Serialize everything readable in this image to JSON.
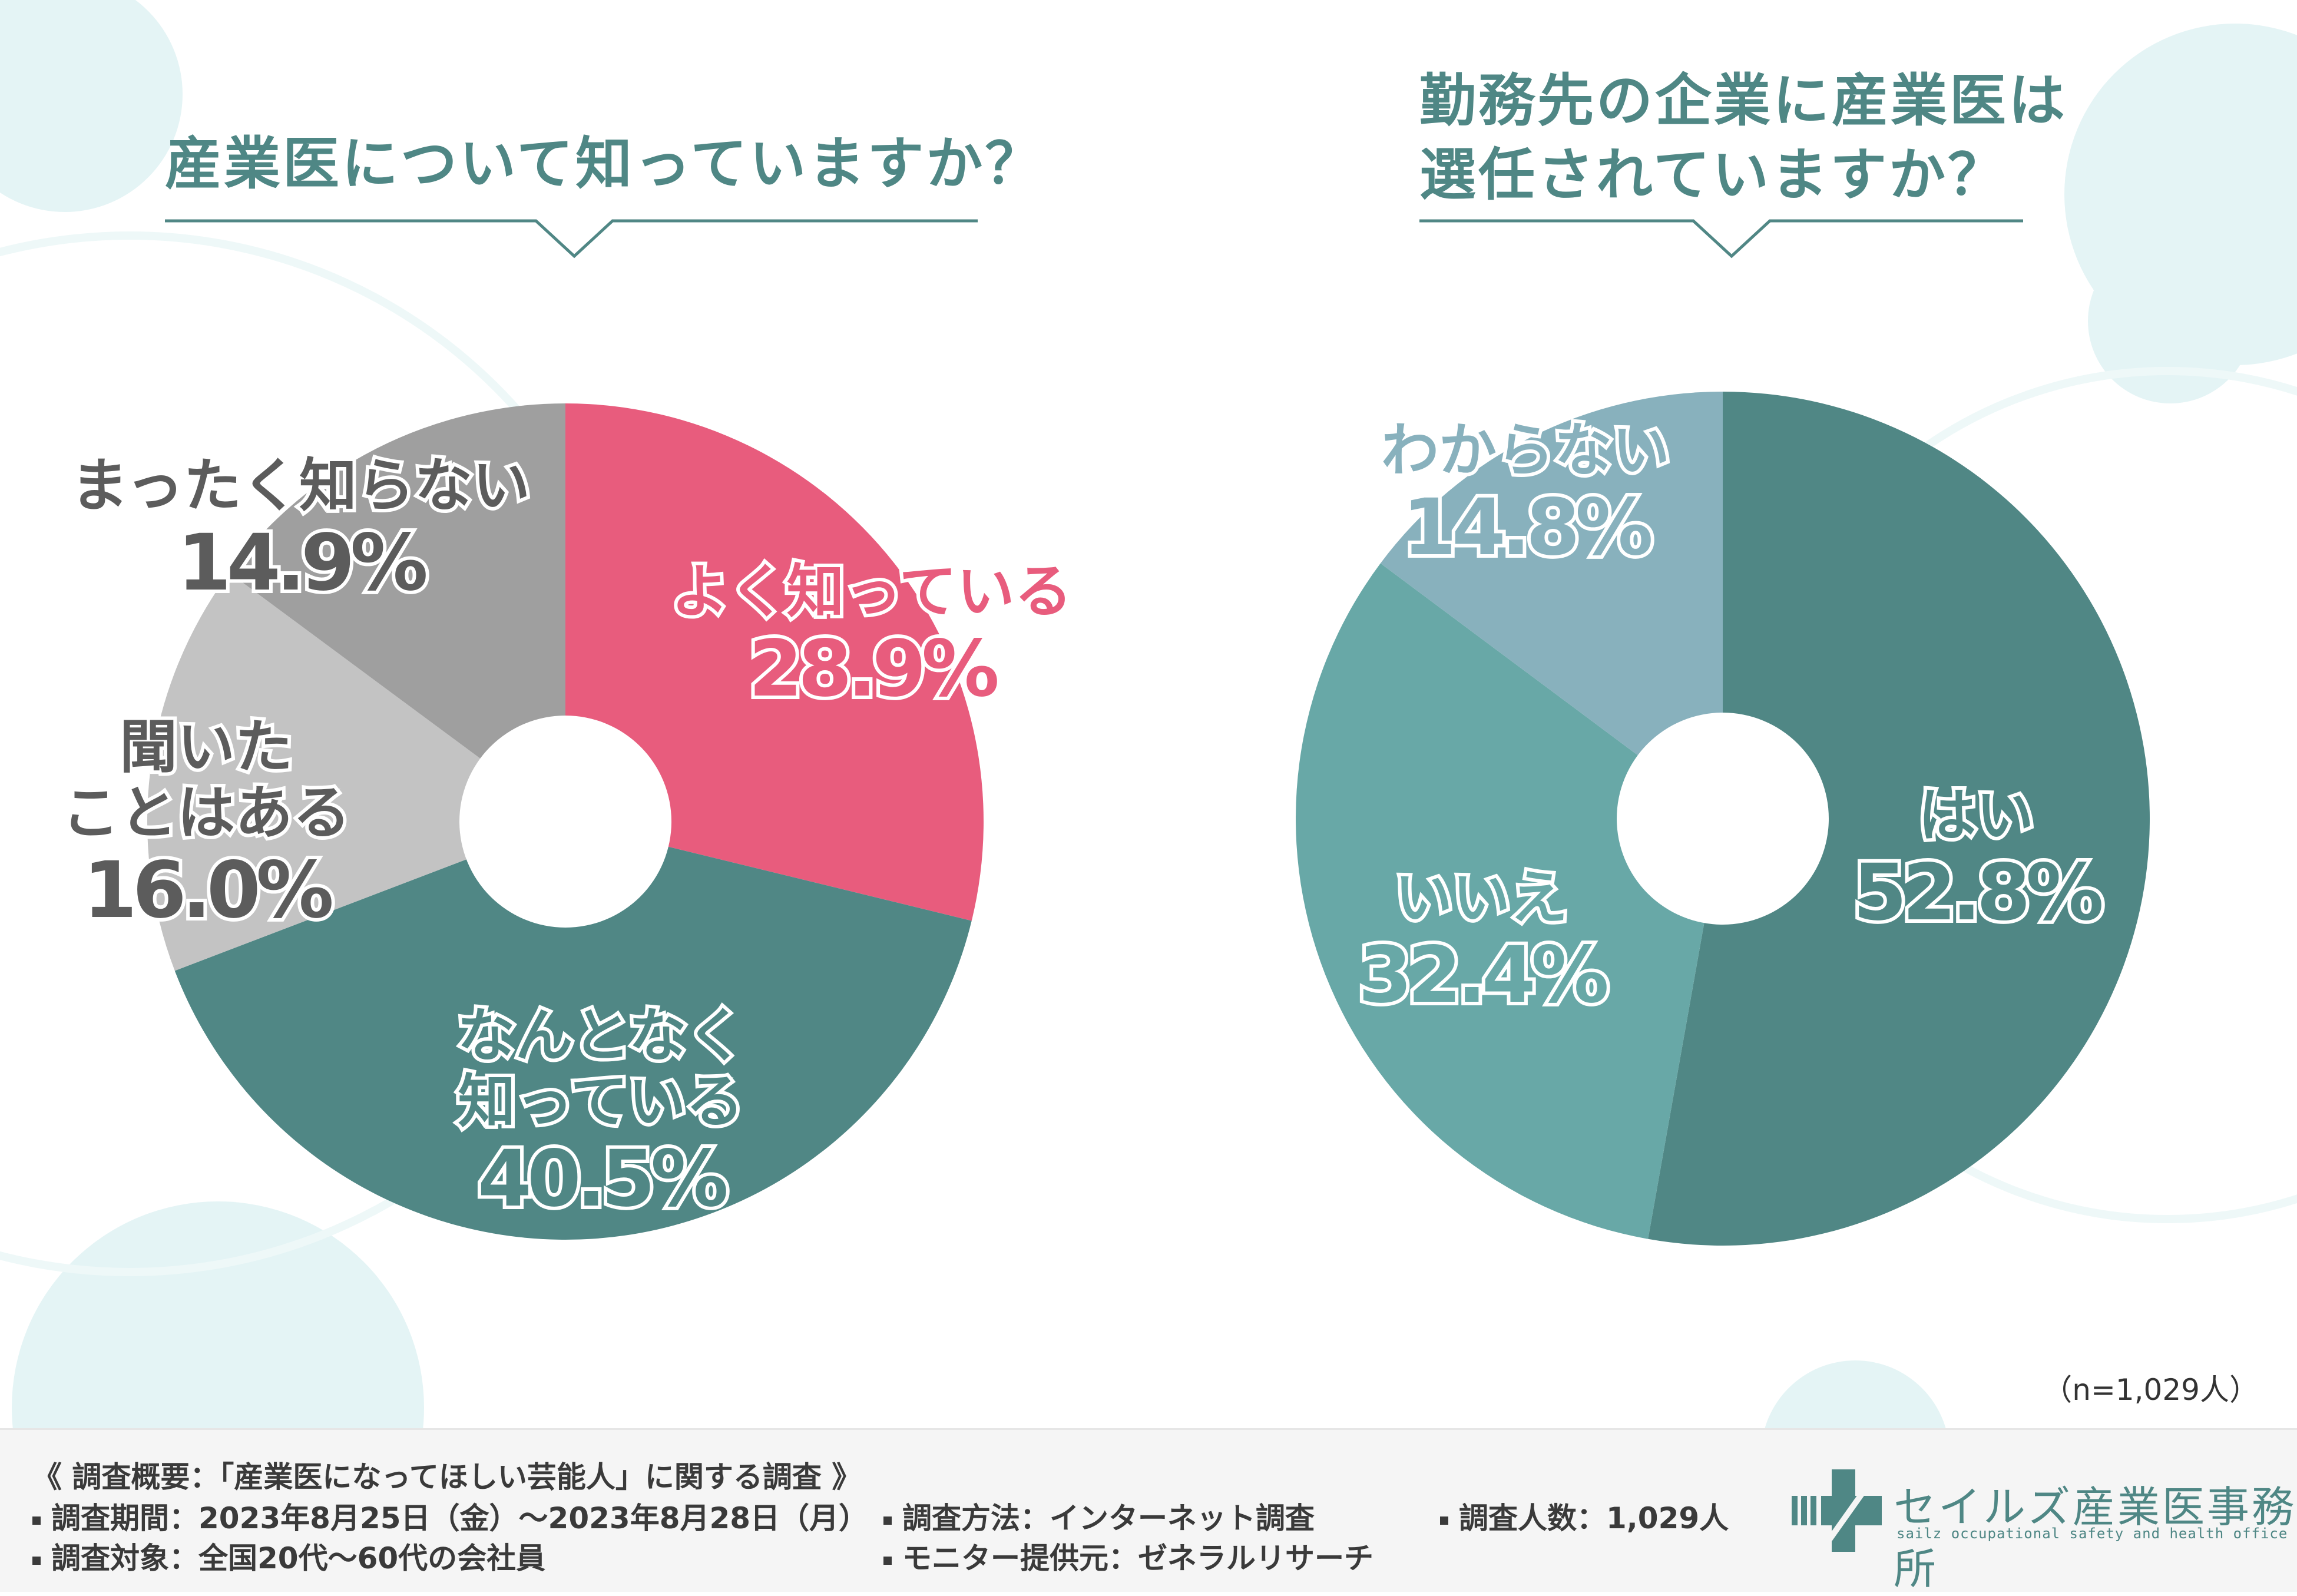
{
  "colors": {
    "teal_dark": "#508785",
    "teal_mid": "#68a8a7",
    "teal_light": "#88b1bd",
    "pink": "#e85c7d",
    "gray_light": "#c3c3c3",
    "gray_mid": "#9f9f9f",
    "deco": "#e4f4f5"
  },
  "chart_data": [
    {
      "type": "pie",
      "title": "産業医について知っていますか？",
      "slices": [
        {
          "label": "よく知っている",
          "value": 28.9,
          "display": "28.9%",
          "color": "#e85c7d",
          "text_color": "#e85c7d"
        },
        {
          "label": "なんとなく知っている",
          "value": 40.5,
          "display": "40.5%",
          "color": "#508785",
          "text_color": "#508785"
        },
        {
          "label": "聞いたことはある",
          "value": 16.0,
          "display": "16.0%",
          "color": "#c3c3c3",
          "text_color": "#5c5c5c"
        },
        {
          "label": "まったく知らない",
          "value": 14.9,
          "display": "14.9%",
          "color": "#9f9f9f",
          "text_color": "#5c5c5c"
        }
      ]
    },
    {
      "type": "pie",
      "title": "勤務先の企業に産業医は選任されていますか？",
      "slices": [
        {
          "label": "はい",
          "value": 52.8,
          "display": "52.8%",
          "color": "#508785",
          "text_color": "#508785"
        },
        {
          "label": "いいえ",
          "value": 32.4,
          "display": "32.4%",
          "color": "#68a8a7",
          "text_color": "#68a8a7"
        },
        {
          "label": "わからない",
          "value": 14.8,
          "display": "14.8%",
          "color": "#88b1bd",
          "text_color": "#88b1bd"
        }
      ]
    }
  ],
  "sample_size": "（n=1,029人）",
  "footer": {
    "summary": "《 調査概要：「産業医になってほしい芸能人」に関する調査 》",
    "period": "調査期間：2023年8月25日（金）～2023年8月28日（月）",
    "target": "調査対象：全国20代～60代の会社員",
    "method": "調査方法：インターネット調査",
    "provider": "モニター提供元：ゼネラルリサーチ",
    "count": "調査人数：1,029人"
  },
  "logo": {
    "name": "セイルズ産業医事務所",
    "subtitle": "sailz occupational safety and health office",
    "icon": "cross-logo-icon"
  }
}
